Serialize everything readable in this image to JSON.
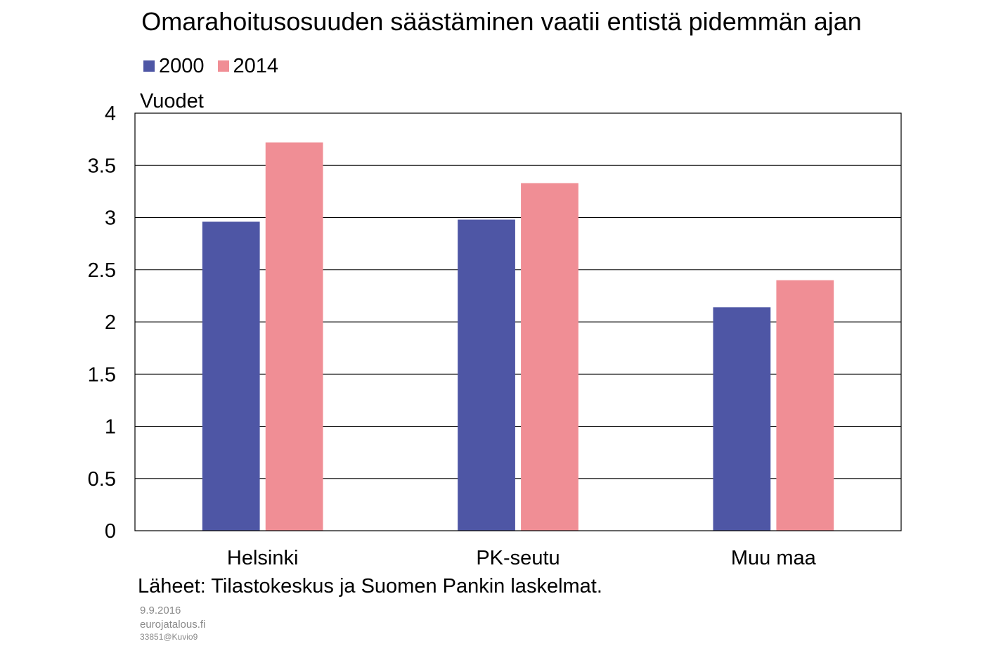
{
  "chart_data": {
    "type": "bar",
    "title": "Omarahoitusosuuden säästäminen vaatii entistä pidemmän ajan",
    "ylabel": "Vuodet",
    "xlabel": "",
    "categories": [
      "Helsinki",
      "PK-seutu",
      "Muu maa"
    ],
    "series": [
      {
        "name": "2000",
        "color": "#4e56a5",
        "values": [
          2.96,
          2.98,
          2.14
        ]
      },
      {
        "name": "2014",
        "color": "#f08e95",
        "values": [
          3.72,
          3.33,
          2.4
        ]
      }
    ],
    "ylim": [
      0,
      4
    ],
    "yticks": [
      "0",
      "0.5",
      "1",
      "1.5",
      "2",
      "2.5",
      "3",
      "3.5",
      "4"
    ],
    "ytick_values": [
      0,
      0.5,
      1,
      1.5,
      2,
      2.5,
      3,
      3.5,
      4
    ],
    "grid": true,
    "legend_position": "top-left"
  },
  "source": "Läheet: Tilastokeskus ja Suomen Pankin laskelmat.",
  "footer": {
    "date": "9.9.2016",
    "site": "eurojatalous.fi",
    "code": "33851@Kuvio9"
  }
}
